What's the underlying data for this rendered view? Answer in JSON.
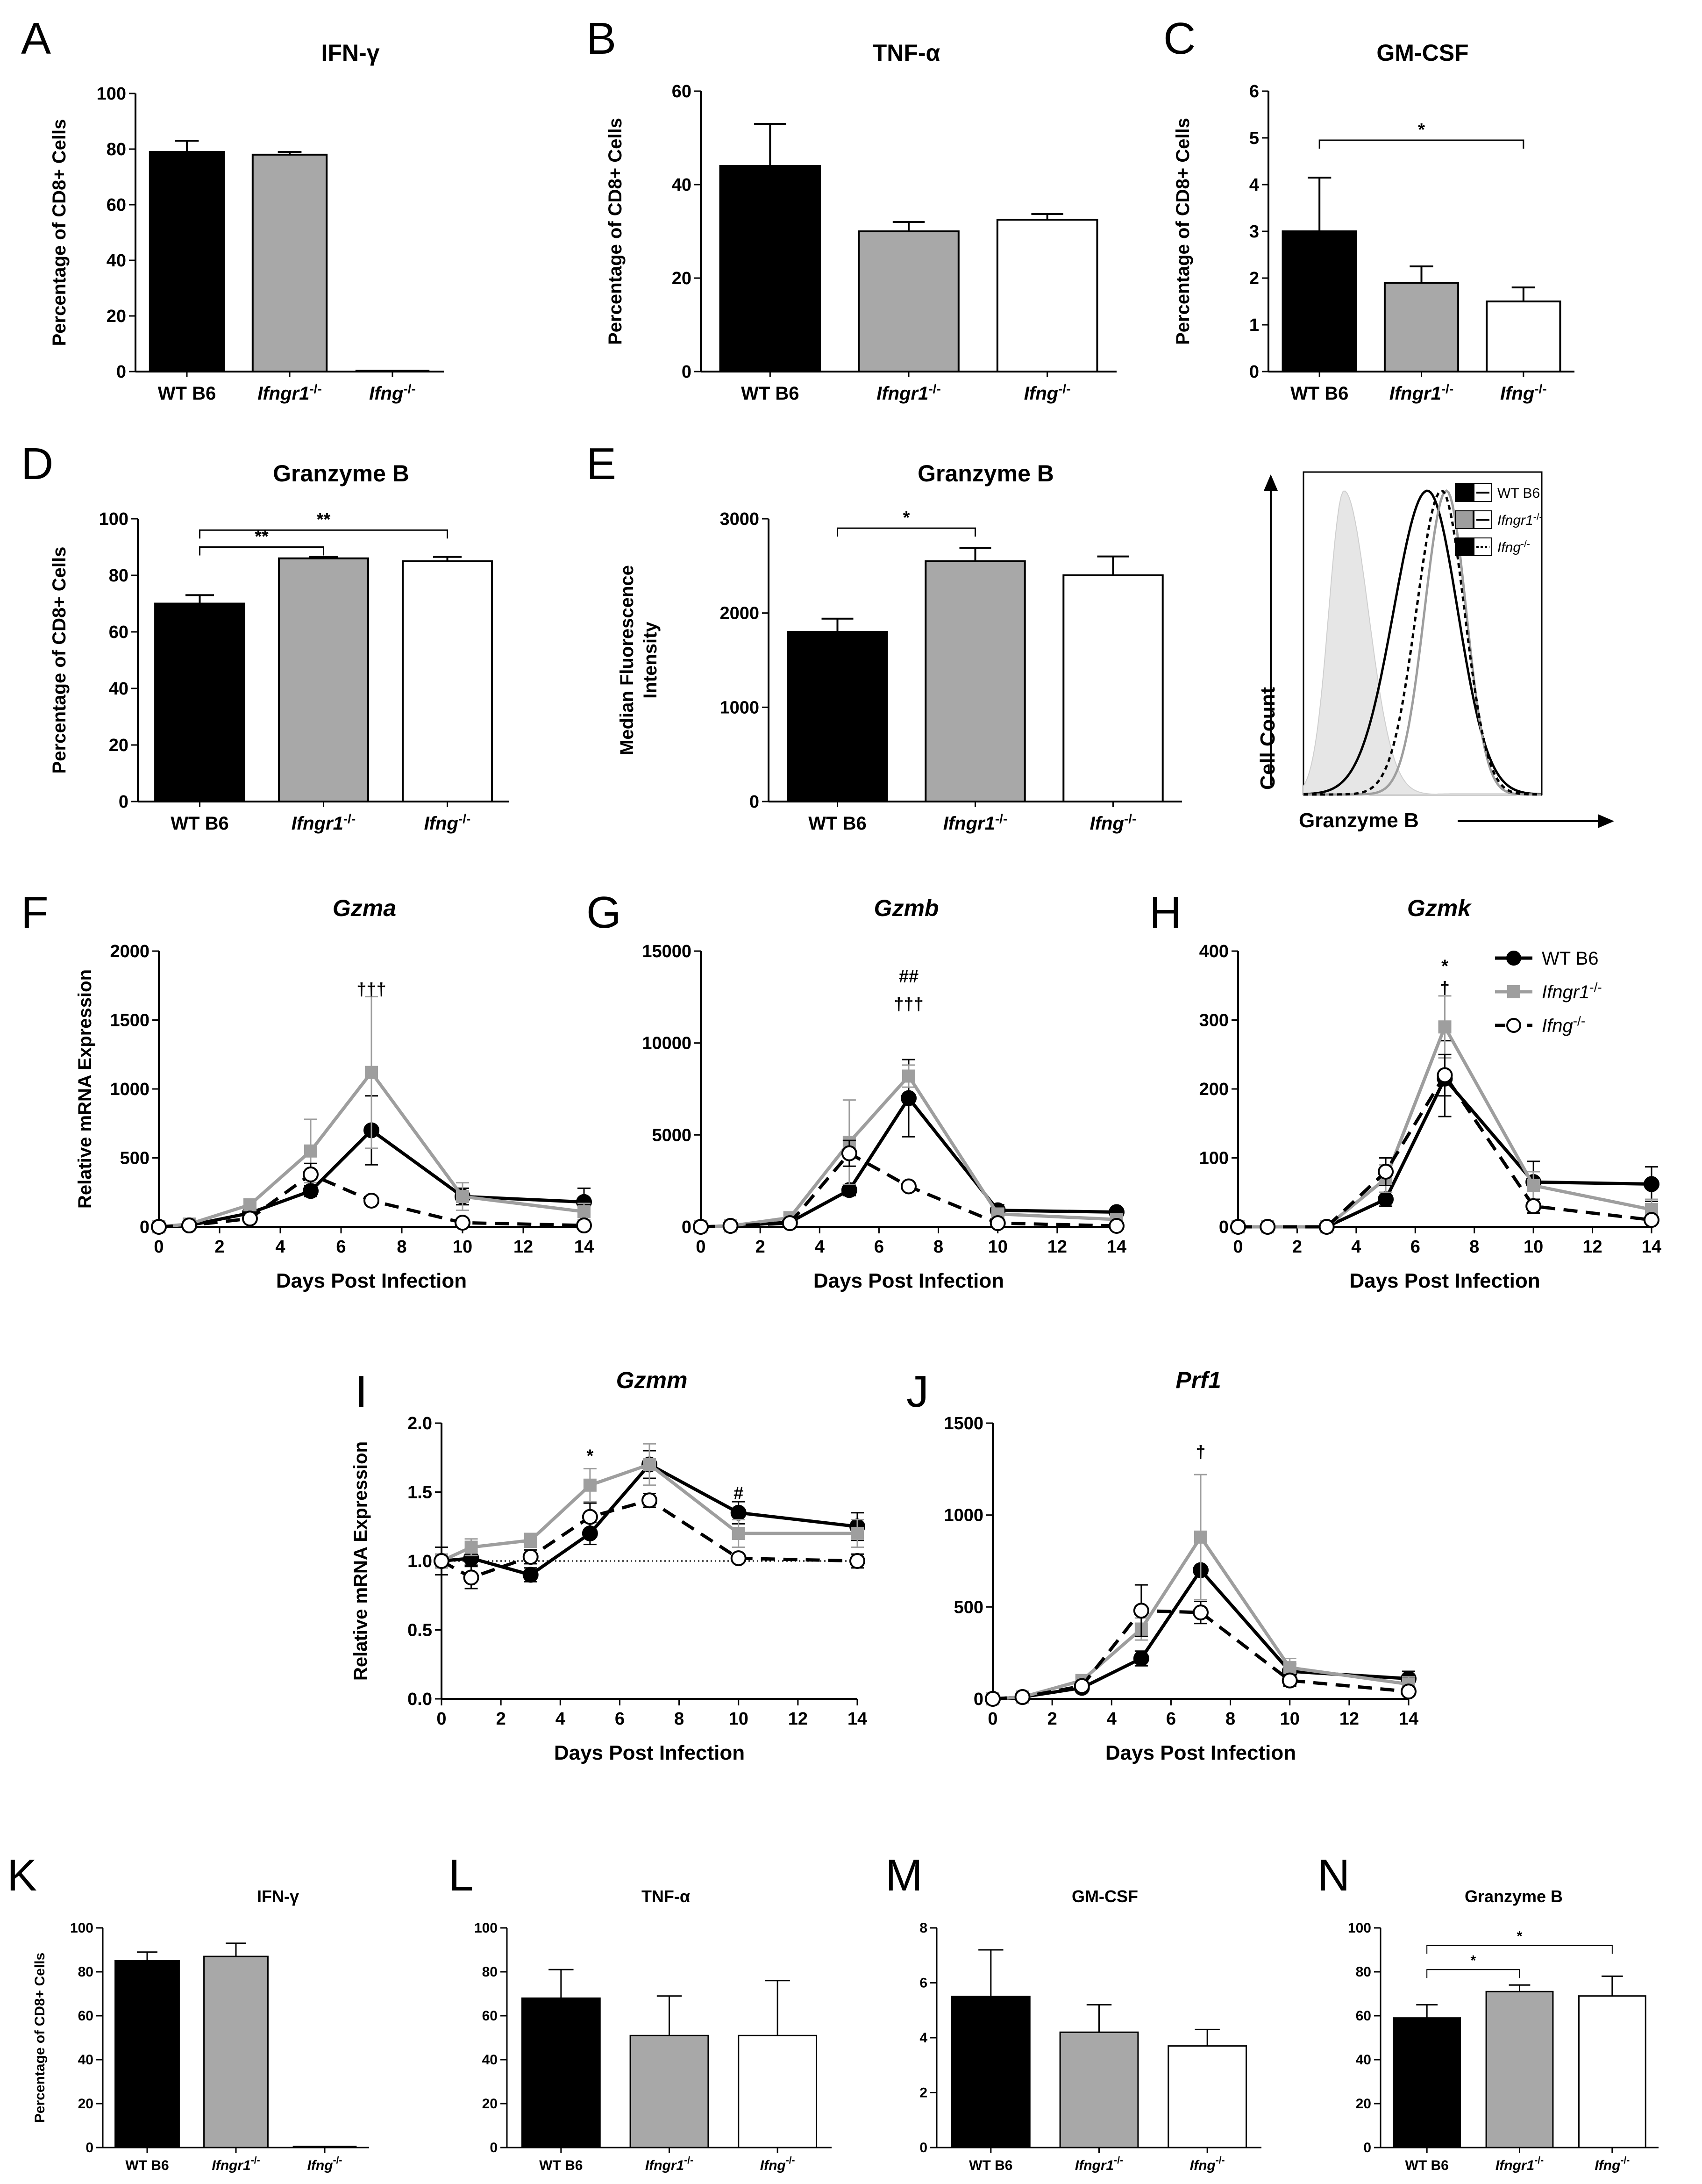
{
  "chart_data": [
    {
      "id": "A",
      "type": "bar",
      "title": "IFN-γ",
      "ylabel": "Percentage of CD8+ Cells",
      "ylim": [
        0,
        100
      ],
      "yticks": [
        0,
        20,
        40,
        60,
        80,
        100
      ],
      "categories": [
        "WT B6",
        "Ifngr1-/-",
        "Ifng-/-"
      ],
      "cat_main": [
        "WT B6",
        "Ifngr1",
        "Ifng"
      ],
      "cat_sup": [
        "",
        "-/-",
        "-/-"
      ],
      "values": [
        79,
        78,
        0
      ],
      "errors": [
        4,
        1,
        0
      ],
      "fills": [
        "#000000",
        "#a8a8a8",
        "#ffffff"
      ],
      "sig": []
    },
    {
      "id": "B",
      "type": "bar",
      "title": "TNF-α",
      "ylabel": "Percentage of CD8+ Cells",
      "ylim": [
        0,
        60
      ],
      "yticks": [
        0,
        20,
        40,
        60
      ],
      "categories": [
        "WT B6",
        "Ifngr1-/-",
        "Ifng-/-"
      ],
      "cat_main": [
        "WT B6",
        "Ifngr1",
        "Ifng"
      ],
      "cat_sup": [
        "",
        "-/-",
        "-/-"
      ],
      "values": [
        44,
        30,
        32.5
      ],
      "errors": [
        9,
        2,
        1.2
      ],
      "fills": [
        "#000000",
        "#a8a8a8",
        "#ffffff"
      ],
      "sig": []
    },
    {
      "id": "C",
      "type": "bar",
      "title": "GM-CSF",
      "ylabel": "Percentage of CD8+ Cells",
      "ylim": [
        0,
        6
      ],
      "yticks": [
        0,
        1,
        2,
        3,
        4,
        5,
        6
      ],
      "categories": [
        "WT B6",
        "Ifngr1-/-",
        "Ifng-/-"
      ],
      "cat_main": [
        "WT B6",
        "Ifngr1",
        "Ifng"
      ],
      "cat_sup": [
        "",
        "-/-",
        "-/-"
      ],
      "values": [
        3.0,
        1.9,
        1.5
      ],
      "errors": [
        1.15,
        0.35,
        0.3
      ],
      "fills": [
        "#000000",
        "#a8a8a8",
        "#ffffff"
      ],
      "sig": [
        {
          "from": 0,
          "to": 2,
          "label": "*"
        }
      ]
    },
    {
      "id": "D",
      "type": "bar",
      "title": "Granzyme B",
      "ylabel": "Percentage of CD8+ Cells",
      "ylim": [
        0,
        100
      ],
      "yticks": [
        0,
        20,
        40,
        60,
        80,
        100
      ],
      "categories": [
        "WT B6",
        "Ifngr1-/-",
        "Ifng-/-"
      ],
      "cat_main": [
        "WT B6",
        "Ifngr1",
        "Ifng"
      ],
      "cat_sup": [
        "",
        "-/-",
        "-/-"
      ],
      "values": [
        70,
        86,
        85
      ],
      "errors": [
        3,
        0.5,
        1.5
      ],
      "fills": [
        "#000000",
        "#a8a8a8",
        "#ffffff"
      ],
      "sig": [
        {
          "from": 0,
          "to": 2,
          "label": "**"
        },
        {
          "from": 0,
          "to": 1,
          "label": "**"
        }
      ]
    },
    {
      "id": "E",
      "type": "bar",
      "title": "Granzyme B",
      "ylabel": "Median Fluorescence",
      "ylabel2": "Intensity",
      "ylim": [
        0,
        3000
      ],
      "yticks": [
        0,
        1000,
        2000,
        3000
      ],
      "categories": [
        "WT B6",
        "Ifngr1-/-",
        "Ifng-/-"
      ],
      "cat_main": [
        "WT B6",
        "Ifngr1",
        "Ifng"
      ],
      "cat_sup": [
        "",
        "-/-",
        "-/-"
      ],
      "values": [
        1800,
        2550,
        2400
      ],
      "errors": [
        140,
        140,
        200
      ],
      "fills": [
        "#000000",
        "#a8a8a8",
        "#ffffff"
      ],
      "sig": [
        {
          "from": 0,
          "to": 1,
          "label": "*"
        }
      ]
    },
    {
      "id": "E-hist",
      "type": "histogram",
      "xlabel": "Granzyme B",
      "ylabel": "Cell Count",
      "legend": [
        {
          "name": "WT B6",
          "main": "WT B6",
          "sup": ""
        },
        {
          "name": "Ifngr1-/-",
          "main": "Ifngr1",
          "sup": "-/-"
        },
        {
          "name": "Ifng-/-",
          "main": "Ifng",
          "sup": "-/-"
        }
      ],
      "series": [
        {
          "name": "isotype",
          "peak": 0.17,
          "width": 0.09
        },
        {
          "name": "WT B6",
          "peak": 0.52,
          "width": 0.2
        },
        {
          "name": "Ifngr1-/-",
          "peak": 0.6,
          "width": 0.13
        },
        {
          "name": "Ifng-/-",
          "peak": 0.58,
          "width": 0.15
        }
      ]
    },
    {
      "id": "F",
      "type": "line",
      "title": "Gzma",
      "xlabel": "Days Post Infection",
      "ylabel": "Relative mRNA Expression",
      "xlim": [
        0,
        14
      ],
      "xticks": [
        0,
        2,
        4,
        6,
        8,
        10,
        12,
        14
      ],
      "ylim": [
        0,
        2000
      ],
      "yticks": [
        0,
        500,
        1000,
        1500,
        2000
      ],
      "x": [
        0,
        1,
        3,
        5,
        7,
        10,
        14
      ],
      "series": [
        {
          "name": "WT B6",
          "values": [
            0,
            10,
            100,
            260,
            700,
            220,
            180
          ],
          "errors": [
            5,
            10,
            30,
            40,
            250,
            60,
            100
          ]
        },
        {
          "name": "Ifngr1-/-",
          "values": [
            0,
            20,
            160,
            550,
            1120,
            220,
            110
          ],
          "errors": [
            5,
            20,
            40,
            230,
            550,
            100,
            60
          ]
        },
        {
          "name": "Ifng-/-",
          "values": [
            0,
            10,
            60,
            380,
            190,
            30,
            10
          ],
          "errors": [
            5,
            10,
            20,
            80,
            20,
            20,
            10
          ]
        }
      ],
      "annotations": [
        {
          "x": 7,
          "y": 1680,
          "label": "†††"
        }
      ]
    },
    {
      "id": "G",
      "type": "line",
      "title": "Gzmb",
      "xlabel": "Days Post Infection",
      "ylabel": "",
      "xlim": [
        0,
        14
      ],
      "xticks": [
        0,
        2,
        4,
        6,
        8,
        10,
        12,
        14
      ],
      "ylim": [
        0,
        15000
      ],
      "yticks": [
        0,
        5000,
        10000,
        15000
      ],
      "x": [
        0,
        1,
        3,
        5,
        7,
        10,
        14
      ],
      "series": [
        {
          "name": "WT B6",
          "values": [
            0,
            50,
            250,
            2000,
            7000,
            900,
            800
          ],
          "errors": [
            30,
            50,
            100,
            300,
            2100,
            300,
            200
          ]
        },
        {
          "name": "Ifngr1-/-",
          "values": [
            0,
            50,
            500,
            4600,
            8200,
            700,
            400
          ],
          "errors": [
            30,
            50,
            150,
            2300,
            600,
            300,
            200
          ]
        },
        {
          "name": "Ifng-/-",
          "values": [
            0,
            50,
            200,
            4000,
            2200,
            200,
            50
          ],
          "errors": [
            30,
            50,
            100,
            700,
            200,
            100,
            50
          ]
        }
      ],
      "annotations": [
        {
          "x": 7,
          "y": 11800,
          "label": "†††"
        },
        {
          "x": 7,
          "y": 13300,
          "label": "##"
        }
      ]
    },
    {
      "id": "H",
      "type": "line",
      "title": "Gzmk",
      "xlabel": "Days Post Infection",
      "ylabel": "",
      "xlim": [
        0,
        14
      ],
      "xticks": [
        0,
        2,
        4,
        6,
        8,
        10,
        12,
        14
      ],
      "ylim": [
        0,
        400
      ],
      "yticks": [
        0,
        100,
        200,
        300,
        400
      ],
      "x": [
        0,
        1,
        3,
        5,
        7,
        10,
        14
      ],
      "series": [
        {
          "name": "WT B6",
          "values": [
            0,
            0,
            0,
            40,
            215,
            65,
            62
          ],
          "errors": [
            2,
            2,
            2,
            10,
            55,
            30,
            25
          ]
        },
        {
          "name": "Ifngr1-/-",
          "values": [
            0,
            0,
            0,
            70,
            290,
            60,
            25
          ],
          "errors": [
            2,
            2,
            2,
            20,
            45,
            20,
            15
          ]
        },
        {
          "name": "Ifng-/-",
          "values": [
            0,
            0,
            0,
            80,
            220,
            30,
            10
          ],
          "errors": [
            2,
            2,
            2,
            20,
            30,
            10,
            5
          ]
        }
      ],
      "annotations": [
        {
          "x": 7,
          "y": 338,
          "label": "†"
        },
        {
          "x": 7,
          "y": 370,
          "label": "*"
        }
      ],
      "legend": [
        {
          "name": "WT B6",
          "main": "WT B6",
          "sup": ""
        },
        {
          "name": "Ifngr1-/-",
          "main": "Ifngr1",
          "sup": "-/-"
        },
        {
          "name": "Ifng-/-",
          "main": "Ifng",
          "sup": "-/-"
        }
      ]
    },
    {
      "id": "I",
      "type": "line",
      "title": "Gzmm",
      "xlabel": "Days Post Infection",
      "ylabel": "Relative mRNA Expression",
      "xlim": [
        0,
        14
      ],
      "xticks": [
        0,
        2,
        4,
        6,
        8,
        10,
        12,
        14
      ],
      "ylim": [
        0,
        2
      ],
      "yticks": [
        "0.0",
        "0.5",
        "1.0",
        "1.5",
        "2.0"
      ],
      "x": [
        0,
        1,
        3,
        5,
        7,
        10,
        14
      ],
      "series": [
        {
          "name": "WT B6",
          "values": [
            1.0,
            1.02,
            0.9,
            1.2,
            1.7,
            1.35,
            1.25
          ],
          "errors": [
            0.05,
            0.05,
            0.05,
            0.08,
            0.1,
            0.08,
            0.1
          ]
        },
        {
          "name": "Ifngr1-/-",
          "values": [
            1.0,
            1.1,
            1.15,
            1.55,
            1.7,
            1.2,
            1.2
          ],
          "errors": [
            0.05,
            0.06,
            0.05,
            0.12,
            0.15,
            0.1,
            0.1
          ]
        },
        {
          "name": "Ifng-/-",
          "values": [
            1.0,
            0.88,
            1.03,
            1.32,
            1.44,
            1.02,
            1.0
          ],
          "errors": [
            0.1,
            0.08,
            0.05,
            0.1,
            0.05,
            0.03,
            0.05
          ]
        }
      ],
      "baseline": 1.0,
      "annotations": [
        {
          "x": 5,
          "y": 1.72,
          "label": "*"
        },
        {
          "x": 10,
          "y": 1.45,
          "label": "#"
        }
      ]
    },
    {
      "id": "J",
      "type": "line",
      "title": "Prf1",
      "xlabel": "Days Post Infection",
      "ylabel": "",
      "xlim": [
        0,
        14
      ],
      "xticks": [
        0,
        2,
        4,
        6,
        8,
        10,
        12,
        14
      ],
      "ylim": [
        0,
        1500
      ],
      "yticks": [
        0,
        500,
        1000,
        1500
      ],
      "x": [
        0,
        1,
        3,
        5,
        7,
        10,
        14
      ],
      "series": [
        {
          "name": "WT B6",
          "values": [
            0,
            10,
            60,
            220,
            700,
            150,
            110
          ],
          "errors": [
            5,
            5,
            20,
            40,
            160,
            40,
            40
          ]
        },
        {
          "name": "Ifngr1-/-",
          "values": [
            0,
            10,
            100,
            380,
            880,
            170,
            80
          ],
          "errors": [
            5,
            5,
            20,
            60,
            340,
            50,
            40
          ]
        },
        {
          "name": "Ifng-/-",
          "values": [
            0,
            10,
            70,
            480,
            470,
            100,
            40
          ],
          "errors": [
            5,
            5,
            20,
            140,
            60,
            30,
            20
          ]
        }
      ],
      "annotations": [
        {
          "x": 7,
          "y": 1310,
          "label": "†"
        }
      ]
    },
    {
      "id": "K",
      "type": "bar",
      "title": "IFN-γ",
      "ylabel": "Percentage of CD8+ Cells",
      "ylim": [
        0,
        100
      ],
      "yticks": [
        0,
        20,
        40,
        60,
        80,
        100
      ],
      "categories": [
        "WT B6",
        "Ifngr1-/-",
        "Ifng-/-"
      ],
      "cat_main": [
        "WT B6",
        "Ifngr1",
        "Ifng"
      ],
      "cat_sup": [
        "",
        "-/-",
        "-/-"
      ],
      "values": [
        85,
        87,
        0
      ],
      "errors": [
        4,
        6,
        0
      ],
      "fills": [
        "#000000",
        "#a8a8a8",
        "#ffffff"
      ],
      "sig": []
    },
    {
      "id": "L",
      "type": "bar",
      "title": "TNF-α",
      "ylabel": "",
      "ylim": [
        0,
        100
      ],
      "yticks": [
        0,
        20,
        40,
        60,
        80,
        100
      ],
      "categories": [
        "WT B6",
        "Ifngr1-/-",
        "Ifng-/-"
      ],
      "cat_main": [
        "WT B6",
        "Ifngr1",
        "Ifng"
      ],
      "cat_sup": [
        "",
        "-/-",
        "-/-"
      ],
      "values": [
        68,
        51,
        51
      ],
      "errors": [
        13,
        18,
        25
      ],
      "fills": [
        "#000000",
        "#a8a8a8",
        "#ffffff"
      ],
      "sig": []
    },
    {
      "id": "M",
      "type": "bar",
      "title": "GM-CSF",
      "ylabel": "",
      "ylim": [
        0,
        8
      ],
      "yticks": [
        0,
        2,
        4,
        6,
        8
      ],
      "categories": [
        "WT B6",
        "Ifngr1-/-",
        "Ifng-/-"
      ],
      "cat_main": [
        "WT B6",
        "Ifngr1",
        "Ifng"
      ],
      "cat_sup": [
        "",
        "-/-",
        "-/-"
      ],
      "values": [
        5.5,
        4.2,
        3.7
      ],
      "errors": [
        1.7,
        1.0,
        0.6
      ],
      "fills": [
        "#000000",
        "#a8a8a8",
        "#ffffff"
      ],
      "sig": []
    },
    {
      "id": "N",
      "type": "bar",
      "title": "Granzyme B",
      "ylabel": "",
      "ylim": [
        0,
        100
      ],
      "yticks": [
        0,
        20,
        40,
        60,
        80,
        100
      ],
      "categories": [
        "WT B6",
        "Ifngr1-/-",
        "Ifng-/-"
      ],
      "cat_main": [
        "WT B6",
        "Ifngr1",
        "Ifng"
      ],
      "cat_sup": [
        "",
        "-/-",
        "-/-"
      ],
      "values": [
        59,
        71,
        69
      ],
      "errors": [
        6,
        3,
        9
      ],
      "fills": [
        "#000000",
        "#a8a8a8",
        "#ffffff"
      ],
      "sig": [
        {
          "from": 0,
          "to": 2,
          "label": "*"
        },
        {
          "from": 0,
          "to": 1,
          "label": "*"
        }
      ]
    }
  ]
}
